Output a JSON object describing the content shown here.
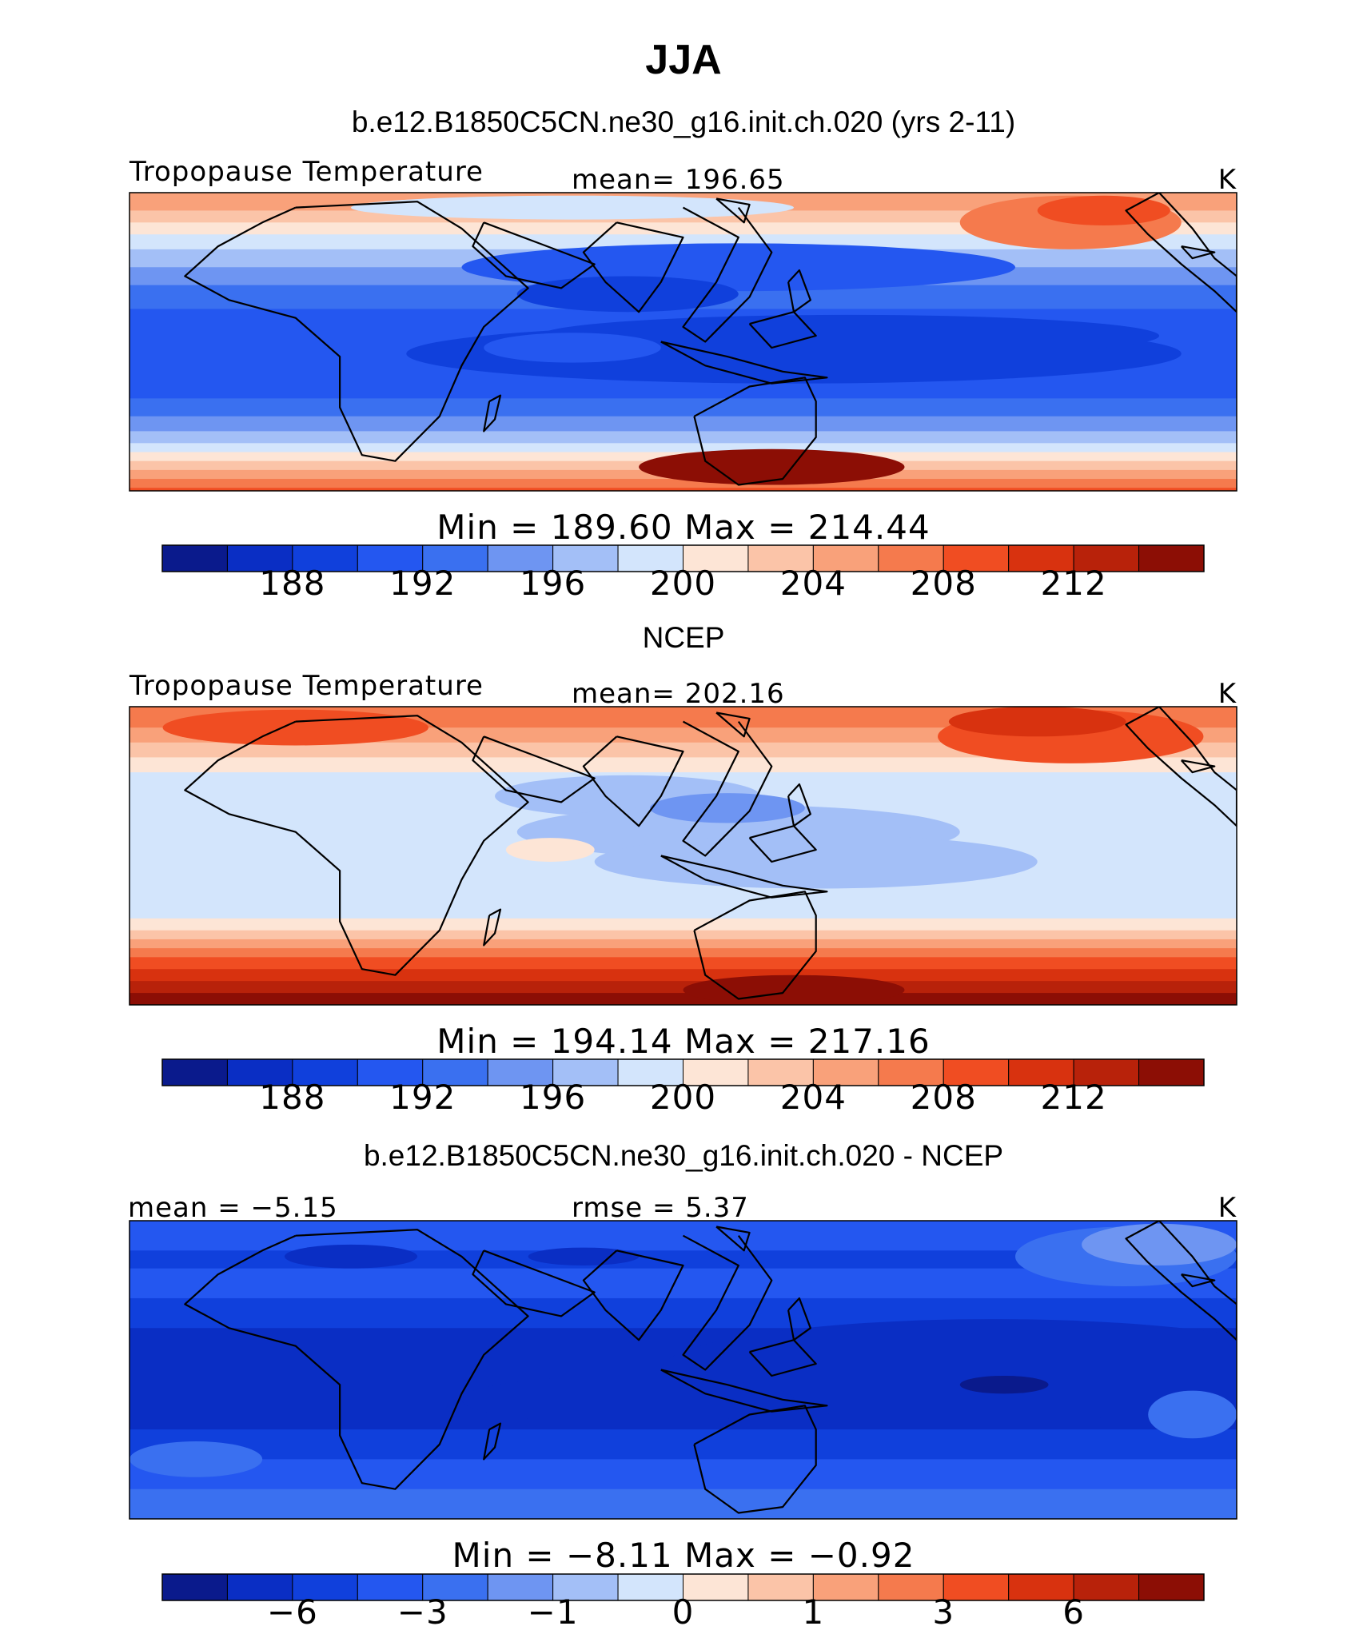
{
  "title": "JJA",
  "colors": {
    "scale": [
      "#0a1a8c",
      "#0a2ec4",
      "#1040dc",
      "#2457f0",
      "#3a70f0",
      "#6e95f2",
      "#a3bff7",
      "#d3e5fc",
      "#fde5d6",
      "#fbc4a8",
      "#f9a17a",
      "#f57a4d",
      "#f04d22",
      "#d8320f",
      "#b8220a",
      "#8c0e05"
    ]
  },
  "chart_data": [
    {
      "type": "heatmap",
      "subtitle": "b.e12.B1850C5CN.ne30_g16.init.ch.020 (yrs 2-11)",
      "left_label": "Tropopause Temperature",
      "center_label": "mean= 196.65",
      "units": "K",
      "field_mean": 196.65,
      "minmax_label": "Min = 189.60 Max = 214.44",
      "min": 189.6,
      "max": 214.44,
      "colorbar_ticks": [
        "188",
        "192",
        "196",
        "200",
        "204",
        "208",
        "212"
      ],
      "colorbar_levels": [
        184,
        186,
        188,
        190,
        192,
        194,
        196,
        198,
        200,
        202,
        204,
        206,
        208,
        210,
        212,
        214,
        216
      ]
    },
    {
      "type": "heatmap",
      "subtitle": "NCEP",
      "left_label": "Tropopause Temperature",
      "center_label": "mean= 202.16",
      "units": "K",
      "field_mean": 202.16,
      "minmax_label": "Min = 194.14 Max = 217.16",
      "min": 194.14,
      "max": 217.16,
      "colorbar_ticks": [
        "188",
        "192",
        "196",
        "200",
        "204",
        "208",
        "212"
      ],
      "colorbar_levels": [
        184,
        186,
        188,
        190,
        192,
        194,
        196,
        198,
        200,
        202,
        204,
        206,
        208,
        210,
        212,
        214,
        216
      ]
    },
    {
      "type": "heatmap",
      "subtitle": "b.e12.B1850C5CN.ne30_g16.init.ch.020 - NCEP",
      "left_label": "mean =    −5.15",
      "center_label": "rmse =      5.37",
      "units": "K",
      "field_mean": -5.15,
      "rmse": 5.37,
      "minmax_label": "Min =    −8.11 Max =    −0.92",
      "min": -8.11,
      "max": -0.92,
      "colorbar_ticks": [
        "−6",
        "−3",
        "−1",
        "0",
        "1",
        "3",
        "6"
      ]
    }
  ]
}
